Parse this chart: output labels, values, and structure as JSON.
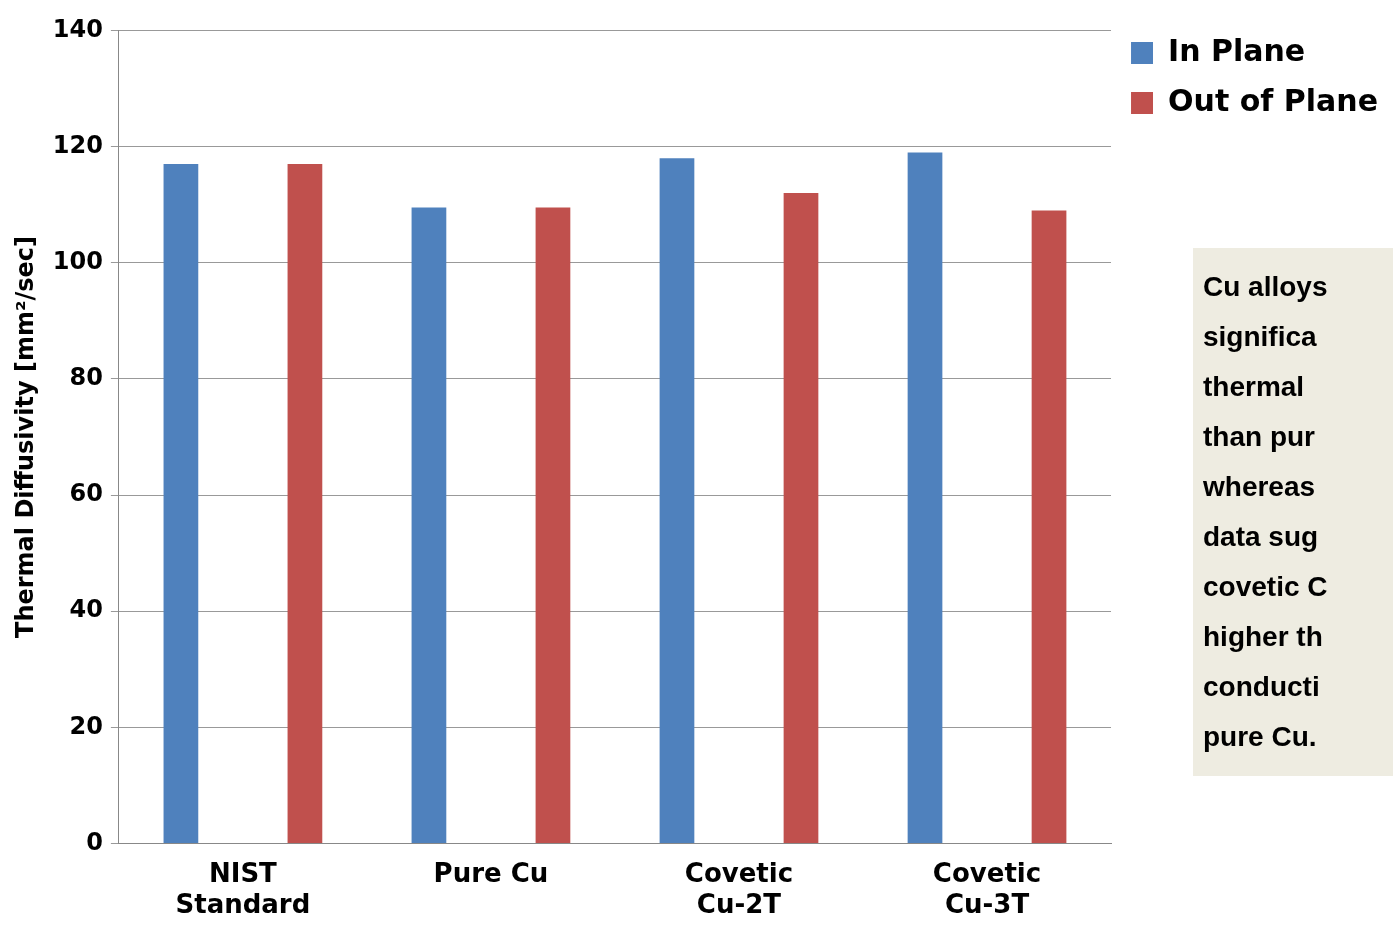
{
  "chart_data": {
    "type": "bar",
    "ylabel": "Thermal Diffusivity [mm²/sec]",
    "categories": [
      "NIST\nStandard",
      "Pure Cu",
      "Covetic\nCu-2T",
      "Covetic\nCu-3T"
    ],
    "series": [
      {
        "name": "In Plane",
        "color": "#4f81bd",
        "values": [
          117,
          109.5,
          118,
          119
        ]
      },
      {
        "name": "Out of Plane",
        "color": "#c0504d",
        "values": [
          117,
          109.5,
          112,
          109
        ]
      }
    ],
    "ylim": [
      0,
      140
    ],
    "yticks": [
      0,
      20,
      40,
      60,
      80,
      100,
      120,
      140
    ],
    "grid": "y",
    "legend": "top right",
    "annotations": [
      "Cu alloys",
      "significa",
      "thermal",
      "than pur",
      "whereas",
      "data sug",
      "covetic C",
      "higher th",
      "conducti",
      "pure Cu."
    ]
  }
}
